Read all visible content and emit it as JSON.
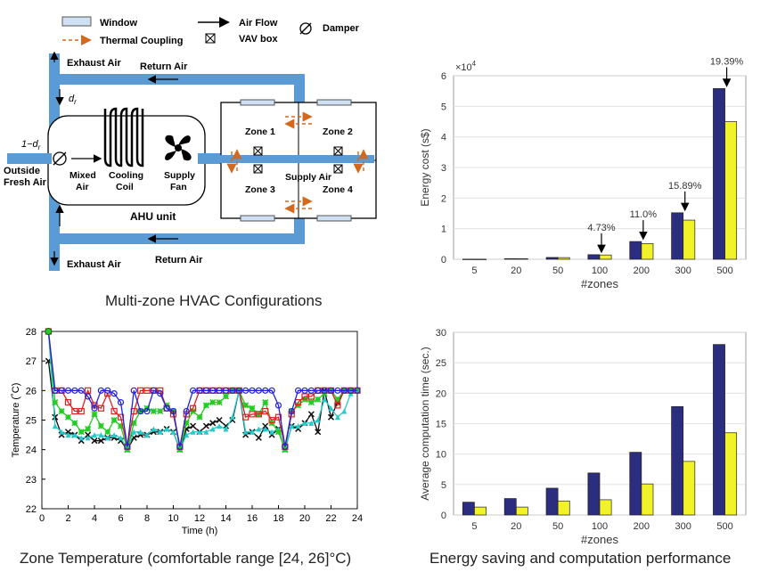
{
  "hvac": {
    "legend": {
      "window": "Window",
      "air_flow": "Air Flow",
      "damper": "Damper",
      "thermal_coupling": "Thermal  Coupling",
      "vav_box": "VAV box"
    },
    "labels": {
      "exhaust_air_top": "Exhaust Air",
      "return_air_top": "Return Air",
      "exhaust_air_bottom": "Exhaust Air",
      "return_air_bottom": "Return Air",
      "dr": "d",
      "dr_sub": "r",
      "one_minus_dr": "1−d",
      "one_minus_dr_sub": "r",
      "outside": "Outside",
      "fresh_air": "Fresh Air",
      "mixed": "Mixed",
      "air": "Air",
      "cooling": "Cooling",
      "coil": "Coil",
      "supply": "Supply",
      "fan": "Fan",
      "ahu_unit": "AHU unit",
      "supply_air": "Supply Air",
      "zone1": "Zone 1",
      "zone2": "Zone 2",
      "zone3": "Zone 3",
      "zone4": "Zone 4"
    },
    "caption": "Multi-zone HVAC Configurations"
  },
  "energy_chart": {
    "chart_data": {
      "type": "bar",
      "xlabel": "#zones",
      "ylabel": "Energy cost (s$)",
      "y_multiplier": "×10",
      "y_multiplier_exp": "4",
      "categories": [
        "5",
        "20",
        "50",
        "100",
        "200",
        "300",
        "500"
      ],
      "ylim": [
        0,
        6
      ],
      "yticks": [
        "0",
        "1",
        "2",
        "3",
        "4",
        "5",
        "6"
      ],
      "series": [
        {
          "color": "#2b2d7e",
          "values": [
            0.005,
            0.02,
            0.06,
            0.15,
            0.58,
            1.52,
            5.58
          ]
        },
        {
          "color": "#f2f229",
          "values": [
            0.004,
            0.018,
            0.055,
            0.14,
            0.515,
            1.28,
            4.5
          ]
        }
      ],
      "annotations": [
        {
          "category": "100",
          "text": "4.73%"
        },
        {
          "category": "200",
          "text": "11.0%"
        },
        {
          "category": "300",
          "text": "15.89%"
        },
        {
          "category": "500",
          "text": "19.39%"
        }
      ],
      "grid": true
    }
  },
  "time_chart": {
    "chart_data": {
      "type": "bar",
      "xlabel": "#zones",
      "ylabel": "Average computation time (sec.)",
      "categories": [
        "5",
        "20",
        "50",
        "100",
        "200",
        "300",
        "500"
      ],
      "ylim": [
        0,
        30
      ],
      "yticks": [
        "0",
        "5",
        "10",
        "15",
        "20",
        "25",
        "30"
      ],
      "series": [
        {
          "color": "#2b2d7e",
          "values": [
            2.1,
            2.7,
            4.4,
            6.9,
            10.3,
            17.8,
            28.0
          ]
        },
        {
          "color": "#f2f229",
          "values": [
            1.3,
            1.3,
            2.3,
            2.5,
            5.1,
            8.8,
            13.5
          ]
        }
      ],
      "grid": true
    },
    "caption": "Energy saving and computation performance"
  },
  "temp_chart": {
    "chart_data": {
      "type": "line",
      "xlabel": "Time (h)",
      "ylabel": "Temperature (˚C)",
      "xlim": [
        0,
        24
      ],
      "ylim": [
        22,
        28
      ],
      "xticks": [
        "0",
        "2",
        "4",
        "6",
        "8",
        "10",
        "12",
        "14",
        "16",
        "18",
        "20",
        "22",
        "24"
      ],
      "yticks": [
        "22",
        "23",
        "24",
        "25",
        "26",
        "27",
        "28"
      ],
      "series": [
        {
          "color": "#2222dd",
          "marker": "circle",
          "x": [
            0.5,
            1,
            1.5,
            2,
            2.5,
            3,
            3.5,
            4,
            4.5,
            5,
            5.5,
            6,
            6.5,
            7,
            7.5,
            8,
            8.5,
            9,
            9.5,
            10,
            10.5,
            11,
            11.5,
            12,
            12.5,
            13,
            13.5,
            14,
            14.5,
            15,
            15.5,
            16,
            16.5,
            17,
            17.5,
            18,
            18.5,
            19,
            19.5,
            20,
            20.5,
            21,
            21.5,
            22,
            22.5,
            23,
            23.5,
            24
          ],
          "y": [
            28,
            26,
            26,
            26,
            26,
            26,
            25.8,
            25.4,
            26,
            26,
            25.9,
            25.6,
            24.1,
            26,
            25.3,
            25.3,
            26,
            25.9,
            25.4,
            25.3,
            24.1,
            25.3,
            26,
            26,
            26,
            26,
            26,
            26,
            26,
            26,
            26,
            26,
            26,
            26,
            26,
            25.5,
            24.1,
            25.3,
            26,
            26,
            26,
            26,
            26,
            26,
            26,
            26,
            26,
            26
          ]
        },
        {
          "color": "#dd2222",
          "marker": "square",
          "x": [
            0.5,
            1,
            1.5,
            2,
            2.5,
            3,
            3.5,
            4,
            4.5,
            5,
            5.5,
            6,
            6.5,
            7,
            7.5,
            8,
            8.5,
            9,
            9.5,
            10,
            10.5,
            11,
            11.5,
            12,
            12.5,
            13,
            13.5,
            14,
            14.5,
            15,
            15.5,
            16,
            16.5,
            17,
            17.5,
            18,
            18.5,
            19,
            19.5,
            20,
            20.5,
            21,
            21.5,
            22,
            22.5,
            23,
            23.5,
            24
          ],
          "y": [
            28,
            26,
            26,
            25.6,
            25.3,
            25.3,
            26,
            25.5,
            25.4,
            25.9,
            25.3,
            25.1,
            24.1,
            25.3,
            26,
            26,
            26,
            26,
            25.4,
            25.2,
            24.1,
            25.2,
            25.4,
            26,
            26,
            26,
            26,
            26,
            26,
            26,
            25.1,
            25.2,
            25.2,
            25.3,
            25,
            25.1,
            24.1,
            25.2,
            25.6,
            25.8,
            25.8,
            26,
            26,
            26,
            25.5,
            26,
            26,
            26
          ]
        },
        {
          "color": "#22cc22",
          "marker": "star",
          "x": [
            0.5,
            1,
            1.5,
            2,
            2.5,
            3,
            3.5,
            4,
            4.5,
            5,
            5.5,
            6,
            6.5,
            7,
            7.5,
            8,
            8.5,
            9,
            9.5,
            10,
            10.5,
            11,
            11.5,
            12,
            12.5,
            13,
            13.5,
            14,
            14.5,
            15,
            15.5,
            16,
            16.5,
            17,
            17.5,
            18,
            18.5,
            19,
            19.5,
            20,
            20.5,
            21,
            21.5,
            22,
            22.5,
            23,
            23.5,
            24
          ],
          "y": [
            28,
            25.6,
            25.3,
            25.1,
            24.9,
            24.6,
            24.7,
            25.2,
            24.8,
            24.6,
            25,
            24.8,
            24,
            24.9,
            25.3,
            25.4,
            25.3,
            25.3,
            25.5,
            25.3,
            24,
            24.9,
            25.3,
            25.1,
            25.5,
            25.6,
            25.6,
            25.8,
            26,
            26,
            25.5,
            25.4,
            25.2,
            25.6,
            24.9,
            24.6,
            24,
            25.3,
            25.5,
            25.7,
            25.6,
            25.7,
            25.9,
            26,
            25.7,
            26,
            26,
            26
          ]
        },
        {
          "color": "#22cccc",
          "marker": "triangle",
          "x": [
            0.5,
            1,
            1.5,
            2,
            2.5,
            3,
            3.5,
            4,
            4.5,
            5,
            5.5,
            6,
            6.5,
            7,
            7.5,
            8,
            8.5,
            9,
            9.5,
            10,
            10.5,
            11,
            11.5,
            12,
            12.5,
            13,
            13.5,
            14,
            14.5,
            15,
            15.5,
            16,
            16.5,
            17,
            17.5,
            18,
            18.5,
            19,
            19.5,
            20,
            20.5,
            21,
            21.5,
            22,
            22.5,
            23,
            23.5,
            24
          ],
          "y": [
            28,
            24.8,
            24.6,
            24.5,
            24.5,
            24.4,
            24.4,
            24.5,
            24.5,
            24.4,
            24.5,
            24.4,
            24,
            24.6,
            24.6,
            24.5,
            24.7,
            24.6,
            24.7,
            24.6,
            24,
            24.5,
            24.6,
            24.6,
            24.6,
            24.7,
            24.8,
            24.7,
            25.1,
            26,
            24.6,
            24.6,
            24.7,
            24.7,
            24.6,
            24.7,
            24,
            24.8,
            24.8,
            24.9,
            24.9,
            25,
            25.7,
            25.4,
            25.1,
            25.3,
            25.9,
            26
          ]
        },
        {
          "color": "#111111",
          "marker": "x",
          "x": [
            0.5,
            1,
            1.5,
            2,
            2.5,
            3,
            3.5,
            4,
            4.5,
            5,
            5.5,
            6,
            6.5,
            7,
            7.5,
            8,
            8.5,
            9,
            9.5,
            10,
            10.5,
            11,
            11.5,
            12,
            12.5,
            13,
            13.5,
            14,
            14.5,
            15,
            15.5,
            16,
            16.5,
            17,
            17.5,
            18,
            18.5,
            19,
            19.5,
            20,
            20.5,
            21,
            21.5,
            22,
            22.5,
            23,
            23.5,
            24
          ],
          "y": [
            27,
            25.1,
            24.5,
            24.6,
            24.5,
            24.3,
            24.5,
            24.3,
            24.3,
            24.4,
            24.4,
            24.3,
            24,
            24.4,
            24.5,
            24.5,
            24.6,
            24.6,
            24.7,
            24.6,
            24,
            24.7,
            24.8,
            24.6,
            24.8,
            24.9,
            25,
            24.8,
            25,
            26,
            24.5,
            24.6,
            24.4,
            24.8,
            24.5,
            24.7,
            24,
            24.8,
            24.7,
            24.9,
            25.2,
            24.6,
            26,
            25.1,
            25.6,
            26,
            26,
            26
          ]
        }
      ],
      "grid": false
    },
    "caption": "Zone Temperature (comfortable range [24, 26]°C)"
  }
}
